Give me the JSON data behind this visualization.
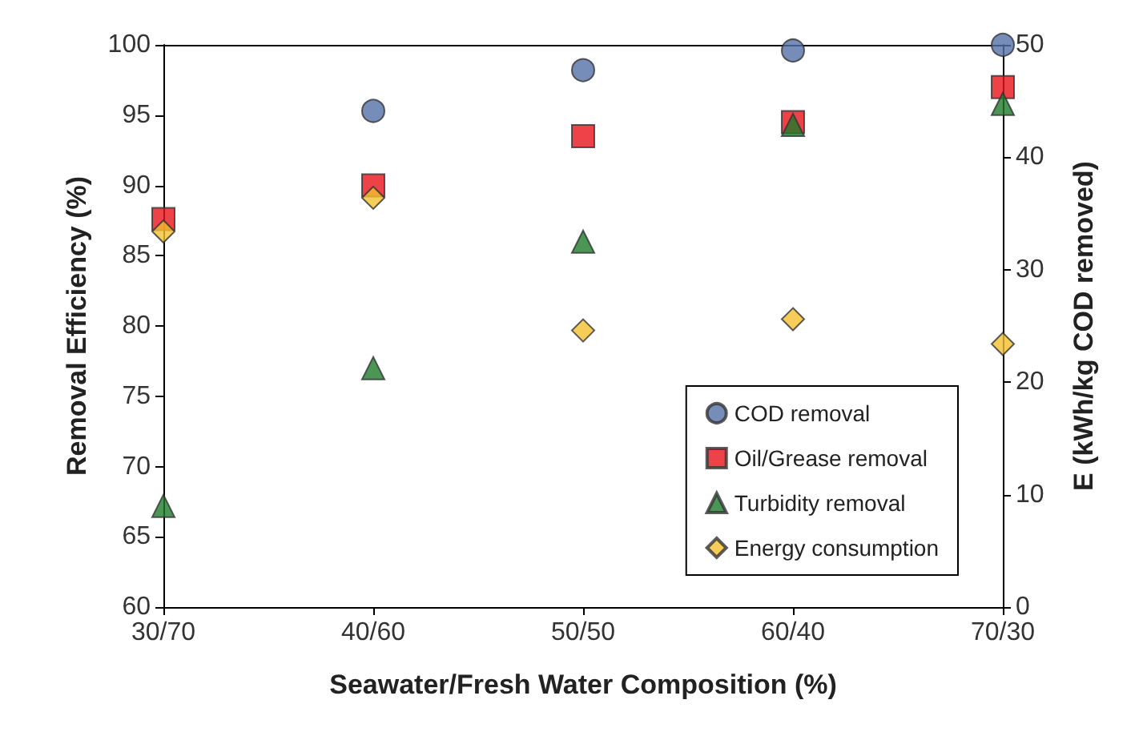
{
  "chart_data": {
    "type": "scatter",
    "xlabel": "Seawater/Fresh Water Composition (%)",
    "ylabel": "Removal Efficiency (%)",
    "y2label": "E (kWh/kg COD removed)",
    "categories": [
      "30/70",
      "40/60",
      "50/50",
      "60/40",
      "70/30"
    ],
    "ylim": [
      60,
      100
    ],
    "yticks": [
      60,
      65,
      70,
      75,
      80,
      85,
      90,
      95,
      100
    ],
    "y2lim": [
      0,
      50
    ],
    "y2ticks": [
      0,
      10,
      20,
      30,
      40,
      50
    ],
    "grid": false,
    "legend": "bottom right",
    "series": [
      {
        "name": "COD removal",
        "color": "#5470a8",
        "marker": "circle",
        "values": [
          null,
          95.3,
          98.2,
          99.6,
          100
        ]
      },
      {
        "name": "Oil/Grease removal",
        "color": "#e8141a",
        "marker": "square",
        "values": [
          87.6,
          90,
          93.5,
          94.5,
          97
        ]
      },
      {
        "name": "Turbidity removal",
        "color": "#1e7a2a",
        "marker": "triangle",
        "values": [
          67.2,
          77,
          86,
          94.3,
          95.8
        ]
      },
      {
        "name": "Energy consumption",
        "color": "#f2c12e",
        "marker": "diamond",
        "axis": "y2",
        "values": [
          33.4,
          36.4,
          24.6,
          25.6,
          23.4
        ]
      }
    ]
  }
}
